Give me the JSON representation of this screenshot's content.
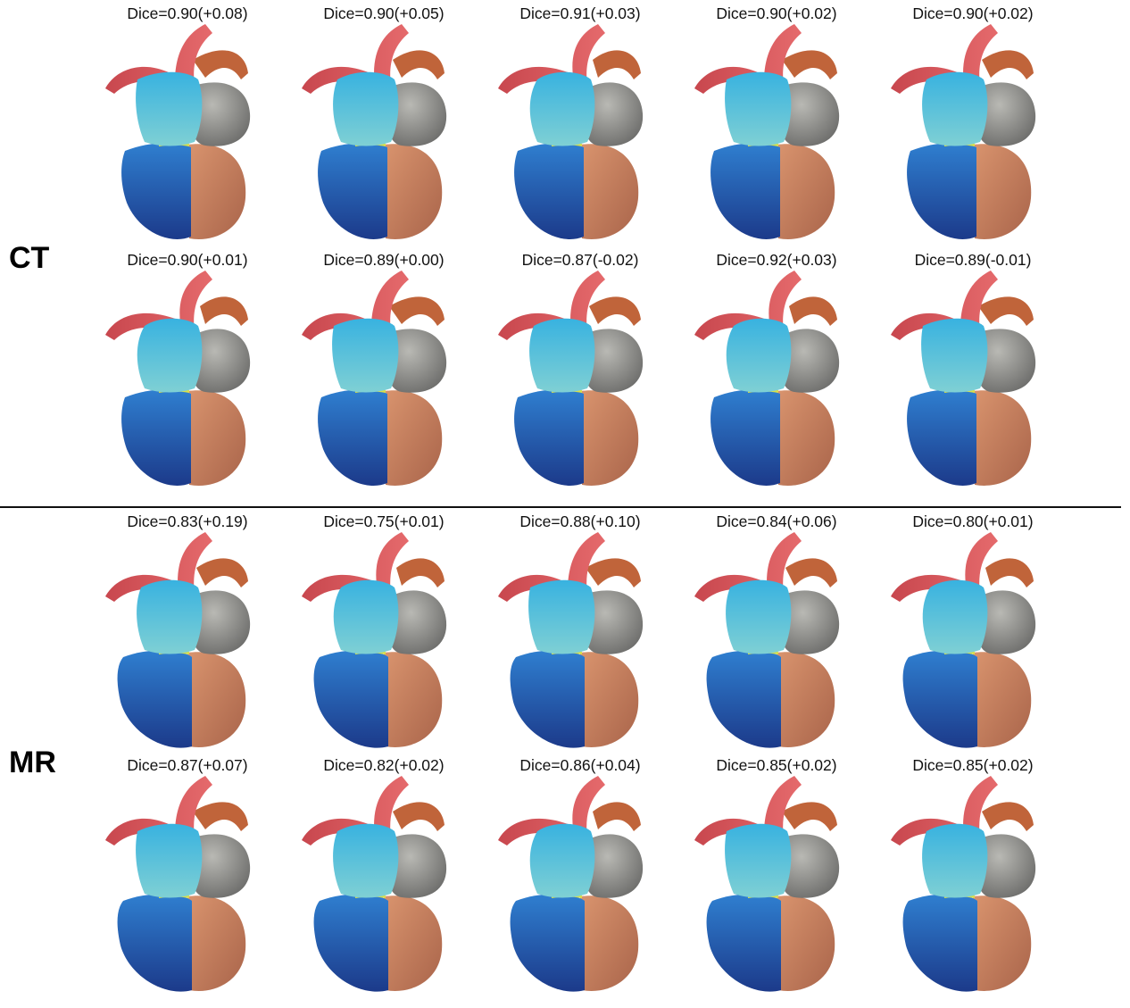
{
  "sections": [
    {
      "label": "CT",
      "rows": [
        [
          "Dice=0.90(+0.08)",
          "Dice=0.90(+0.05)",
          "Dice=0.91(+0.03)",
          "Dice=0.90(+0.02)",
          "Dice=0.90(+0.02)"
        ],
        [
          "Dice=0.90(+0.01)",
          "Dice=0.89(+0.00)",
          "Dice=0.87(-0.02)",
          "Dice=0.92(+0.03)",
          "Dice=0.89(-0.01)"
        ]
      ]
    },
    {
      "label": "MR",
      "rows": [
        [
          "Dice=0.83(+0.19)",
          "Dice=0.75(+0.01)",
          "Dice=0.88(+0.10)",
          "Dice=0.84(+0.06)",
          "Dice=0.80(+0.01)"
        ],
        [
          "Dice=0.87(+0.07)",
          "Dice=0.82(+0.02)",
          "Dice=0.86(+0.04)",
          "Dice=0.85(+0.02)",
          "Dice=0.85(+0.02)"
        ]
      ]
    }
  ],
  "colors": {
    "left_ventricle": "#2a4fa0",
    "right_ventricle": "#c98462",
    "left_atrium": "#3aa9d6",
    "right_atrium": "#8e8e8e",
    "aorta": "#d9575c",
    "pulmonary_artery": "#c0643a",
    "valve": "#d8e04a"
  }
}
